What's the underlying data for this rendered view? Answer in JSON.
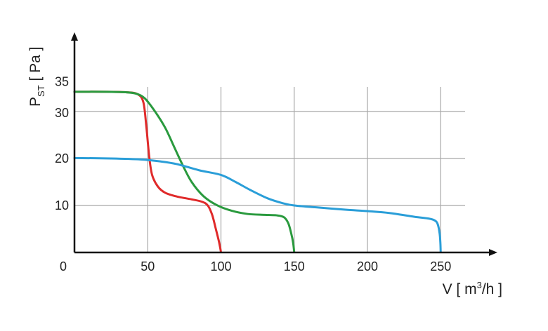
{
  "chart_data": {
    "type": "line",
    "xlabel": {
      "main": "V [ m",
      "sup": "3",
      "rest": "/h ]"
    },
    "ylabel": {
      "main": "P",
      "sub": "ST",
      "rest": " [ Pa ]"
    },
    "origin_label": "0",
    "xlim": [
      0,
      290
    ],
    "ylim": [
      0,
      45
    ],
    "x_ticks": [
      {
        "value": 50,
        "label": "50"
      },
      {
        "value": 100,
        "label": "100"
      },
      {
        "value": 150,
        "label": "150"
      },
      {
        "value": 200,
        "label": "200"
      },
      {
        "value": 250,
        "label": "250"
      }
    ],
    "y_ticks": [
      {
        "value": 10,
        "label": "10"
      },
      {
        "value": 20,
        "label": "20"
      },
      {
        "value": 30,
        "label": "30"
      },
      {
        "value": 35,
        "label": "35"
      }
    ],
    "grid": true,
    "legend": "none",
    "series": [
      {
        "color": "#e02a2a",
        "points": [
          [
            0,
            34.2
          ],
          [
            20,
            34.2
          ],
          [
            35,
            34.1
          ],
          [
            43,
            33.7
          ],
          [
            47,
            32
          ],
          [
            49,
            27
          ],
          [
            51,
            20.5
          ],
          [
            53,
            16.5
          ],
          [
            57,
            14
          ],
          [
            62,
            12.7
          ],
          [
            70,
            11.9
          ],
          [
            80,
            11.3
          ],
          [
            87,
            10.8
          ],
          [
            91,
            10
          ],
          [
            94,
            8
          ],
          [
            96.5,
            5
          ],
          [
            98.5,
            2.5
          ],
          [
            99.6,
            0.8
          ],
          [
            100,
            0
          ]
        ]
      },
      {
        "color": "#2a9a3e",
        "points": [
          [
            0,
            34.2
          ],
          [
            20,
            34.2
          ],
          [
            35,
            34.1
          ],
          [
            42,
            33.8
          ],
          [
            48,
            32.8
          ],
          [
            55,
            30
          ],
          [
            62,
            26.5
          ],
          [
            68,
            22.5
          ],
          [
            74,
            18.5
          ],
          [
            80,
            15
          ],
          [
            88,
            12
          ],
          [
            97,
            10.1
          ],
          [
            107,
            8.9
          ],
          [
            118,
            8.2
          ],
          [
            130,
            8
          ],
          [
            138,
            7.9
          ],
          [
            143,
            7.5
          ],
          [
            146,
            6.2
          ],
          [
            148,
            4
          ],
          [
            149.3,
            2
          ],
          [
            150,
            0
          ]
        ]
      },
      {
        "color": "#2a9ed8",
        "points": [
          [
            0,
            20.1
          ],
          [
            25,
            20
          ],
          [
            45,
            19.8
          ],
          [
            58,
            19.4
          ],
          [
            70,
            18.8
          ],
          [
            85,
            17.5
          ],
          [
            100,
            16.5
          ],
          [
            110,
            15
          ],
          [
            120,
            13.3
          ],
          [
            132,
            11.5
          ],
          [
            142,
            10.5
          ],
          [
            150,
            10
          ],
          [
            165,
            9.6
          ],
          [
            185,
            9.1
          ],
          [
            200,
            8.8
          ],
          [
            215,
            8.4
          ],
          [
            232,
            7.6
          ],
          [
            242,
            7.2
          ],
          [
            246,
            6.8
          ],
          [
            248,
            6
          ],
          [
            249.3,
            4
          ],
          [
            249.8,
            2
          ],
          [
            250,
            0
          ]
        ]
      }
    ]
  }
}
